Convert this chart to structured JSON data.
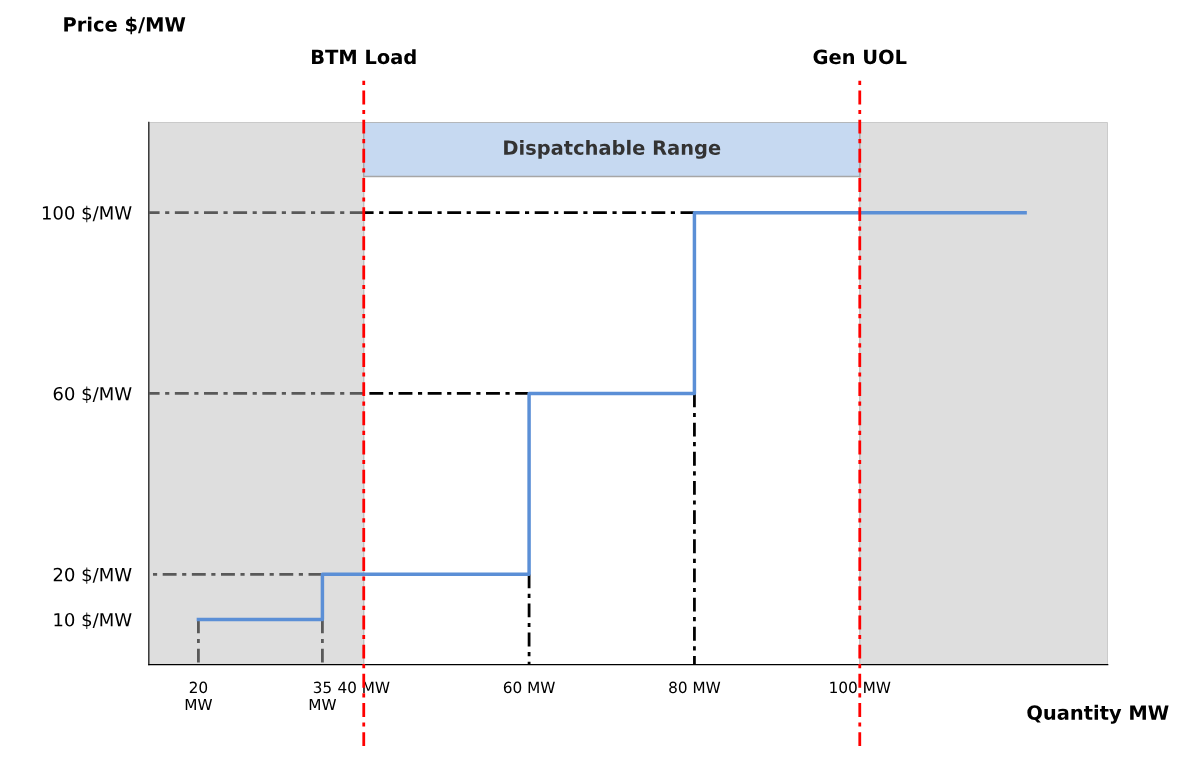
{
  "chart_data": {
    "type": "step",
    "xlabel": "Quantity MW",
    "ylabel": "Price $/MW",
    "xlim": [
      14,
      130
    ],
    "ylim": [
      0,
      120
    ],
    "xticks": [
      {
        "value": 20,
        "label": "20\nMW"
      },
      {
        "value": 35,
        "label": "35\nMW"
      },
      {
        "value": 40,
        "label": "40 MW"
      },
      {
        "value": 60,
        "label": "60 MW"
      },
      {
        "value": 80,
        "label": "80 MW"
      },
      {
        "value": 100,
        "label": "100 MW"
      }
    ],
    "yticks": [
      {
        "value": 10,
        "label": "10 $/MW"
      },
      {
        "value": 20,
        "label": "20 $/MW"
      },
      {
        "value": 60,
        "label": "60 $/MW"
      },
      {
        "value": 100,
        "label": "100 $/MW"
      }
    ],
    "series": [
      {
        "type": "line",
        "color": "#595959",
        "line_style": "dashed",
        "x": [
          40,
          14
        ],
        "values": [
          100,
          100
        ]
      },
      {
        "type": "line",
        "color": "#595959",
        "line_style": "dashed",
        "x": [
          40,
          14
        ],
        "values": [
          60,
          60
        ]
      },
      {
        "type": "line",
        "color": "#595959",
        "line_style": "dashed",
        "x": [
          35,
          14
        ],
        "values": [
          20,
          20
        ]
      },
      {
        "type": "line",
        "color": "#595959",
        "line_style": "dashed",
        "x": [
          20,
          20
        ],
        "values": [
          10,
          0
        ]
      },
      {
        "type": "line",
        "color": "#595959",
        "line_style": "dashed",
        "x": [
          35,
          35
        ],
        "values": [
          10,
          0
        ]
      },
      {
        "type": "line",
        "color": "#000000",
        "line_style": "dashed",
        "x": [
          80,
          40
        ],
        "values": [
          100,
          100
        ]
      },
      {
        "type": "line",
        "color": "#000000",
        "line_style": "dashed",
        "x": [
          60,
          40
        ],
        "values": [
          60,
          60
        ]
      },
      {
        "type": "line",
        "color": "#000000",
        "line_style": "dashed",
        "x": [
          60,
          60
        ],
        "values": [
          20,
          0
        ]
      },
      {
        "type": "line",
        "color": "#000000",
        "line_style": "dashed",
        "x": [
          80,
          80
        ],
        "values": [
          60,
          0
        ]
      },
      {
        "color": "#5b8fd6",
        "line_style": "solid",
        "x": [
          20,
          35,
          60,
          80,
          120
        ],
        "values": [
          10,
          20,
          60,
          100,
          100
        ]
      }
    ],
    "bands": [
      {
        "axis": "x",
        "from": 14,
        "to": 40,
        "color": "#dedede"
      },
      {
        "axis": "x",
        "from": 100,
        "to": 130,
        "color": "#dedede"
      },
      {
        "axis": "x",
        "from": 40,
        "to": 100,
        "color": "#c6d9f1",
        "label": "Dispatchable Range"
      }
    ],
    "ref_lines": [
      {
        "axis": "x",
        "value": 40,
        "label": "BTM Load",
        "color": "#ff0000",
        "line_style": "dashed"
      },
      {
        "axis": "x",
        "value": 100,
        "label": "Gen UOL",
        "color": "#ff0000",
        "line_style": "dashed"
      }
    ],
    "grid": false,
    "legend": false
  }
}
